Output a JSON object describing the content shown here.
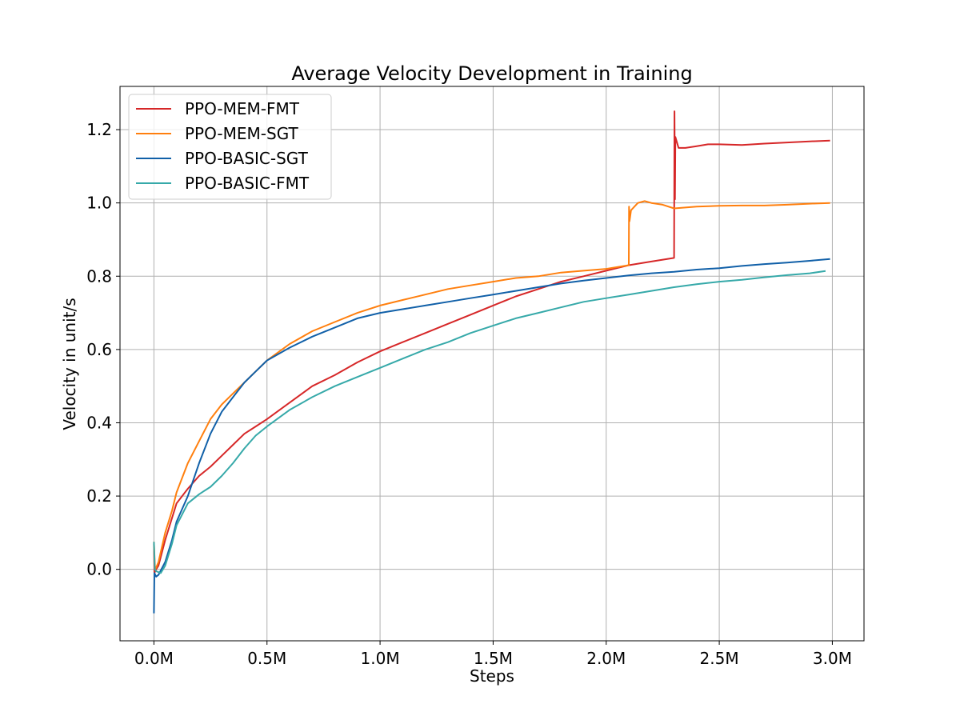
{
  "chart_data": {
    "type": "line",
    "title": "Average Velocity Development in Training",
    "xlabel": "Steps",
    "ylabel": "Velocity in unit/s",
    "xlim": [
      -0.15,
      3.14
    ],
    "ylim": [
      -0.195,
      1.318
    ],
    "x_unit": "M steps",
    "xticks": [
      0.0,
      0.5,
      1.0,
      1.5,
      2.0,
      2.5,
      3.0
    ],
    "xtick_labels": [
      "0.0M",
      "0.5M",
      "1.0M",
      "1.5M",
      "2.0M",
      "2.5M",
      "3.0M"
    ],
    "yticks": [
      0.0,
      0.2,
      0.4,
      0.6,
      0.8,
      1.0,
      1.2
    ],
    "ytick_labels": [
      "0.0",
      "0.2",
      "0.4",
      "0.6",
      "0.8",
      "1.0",
      "1.2"
    ],
    "grid": true,
    "legend_position": "top-left",
    "series": [
      {
        "name": "PPO-MEM-FMT",
        "color": "#d62728",
        "points": [
          [
            0.0,
            0.07
          ],
          [
            0.002,
            -0.01
          ],
          [
            0.01,
            0.0
          ],
          [
            0.02,
            0.01
          ],
          [
            0.05,
            0.08
          ],
          [
            0.08,
            0.14
          ],
          [
            0.1,
            0.18
          ],
          [
            0.15,
            0.22
          ],
          [
            0.2,
            0.255
          ],
          [
            0.25,
            0.28
          ],
          [
            0.3,
            0.31
          ],
          [
            0.35,
            0.34
          ],
          [
            0.4,
            0.37
          ],
          [
            0.45,
            0.39
          ],
          [
            0.5,
            0.41
          ],
          [
            0.6,
            0.455
          ],
          [
            0.7,
            0.5
          ],
          [
            0.8,
            0.53
          ],
          [
            0.9,
            0.565
          ],
          [
            1.0,
            0.595
          ],
          [
            1.1,
            0.62
          ],
          [
            1.2,
            0.645
          ],
          [
            1.3,
            0.67
          ],
          [
            1.4,
            0.695
          ],
          [
            1.5,
            0.72
          ],
          [
            1.6,
            0.745
          ],
          [
            1.7,
            0.765
          ],
          [
            1.8,
            0.785
          ],
          [
            1.9,
            0.8
          ],
          [
            2.0,
            0.815
          ],
          [
            2.1,
            0.83
          ],
          [
            2.2,
            0.84
          ],
          [
            2.3,
            0.85
          ],
          [
            2.302,
            1.25
          ],
          [
            2.304,
            1.01
          ],
          [
            2.306,
            1.18
          ],
          [
            2.32,
            1.15
          ],
          [
            2.35,
            1.15
          ],
          [
            2.4,
            1.155
          ],
          [
            2.45,
            1.16
          ],
          [
            2.5,
            1.16
          ],
          [
            2.6,
            1.158
          ],
          [
            2.7,
            1.162
          ],
          [
            2.8,
            1.165
          ],
          [
            2.9,
            1.168
          ],
          [
            2.99,
            1.17
          ]
        ]
      },
      {
        "name": "PPO-MEM-SGT",
        "color": "#ff7f0e",
        "points": [
          [
            0.0,
            0.075
          ],
          [
            0.005,
            0.0
          ],
          [
            0.01,
            0.005
          ],
          [
            0.02,
            0.02
          ],
          [
            0.05,
            0.1
          ],
          [
            0.08,
            0.16
          ],
          [
            0.1,
            0.21
          ],
          [
            0.15,
            0.29
          ],
          [
            0.2,
            0.35
          ],
          [
            0.25,
            0.41
          ],
          [
            0.3,
            0.45
          ],
          [
            0.35,
            0.48
          ],
          [
            0.4,
            0.51
          ],
          [
            0.45,
            0.54
          ],
          [
            0.5,
            0.57
          ],
          [
            0.6,
            0.615
          ],
          [
            0.7,
            0.65
          ],
          [
            0.8,
            0.675
          ],
          [
            0.9,
            0.7
          ],
          [
            1.0,
            0.72
          ],
          [
            1.1,
            0.735
          ],
          [
            1.2,
            0.75
          ],
          [
            1.3,
            0.765
          ],
          [
            1.4,
            0.775
          ],
          [
            1.5,
            0.785
          ],
          [
            1.6,
            0.795
          ],
          [
            1.7,
            0.8
          ],
          [
            1.8,
            0.81
          ],
          [
            1.9,
            0.815
          ],
          [
            2.0,
            0.82
          ],
          [
            2.1,
            0.83
          ],
          [
            2.101,
            0.99
          ],
          [
            2.103,
            0.95
          ],
          [
            2.11,
            0.98
          ],
          [
            2.14,
            1.0
          ],
          [
            2.17,
            1.005
          ],
          [
            2.2,
            1.0
          ],
          [
            2.25,
            0.995
          ],
          [
            2.3,
            0.985
          ],
          [
            2.4,
            0.99
          ],
          [
            2.5,
            0.992
          ],
          [
            2.6,
            0.993
          ],
          [
            2.7,
            0.993
          ],
          [
            2.8,
            0.995
          ],
          [
            2.9,
            0.998
          ],
          [
            2.99,
            1.0
          ]
        ]
      },
      {
        "name": "PPO-BASIC-SGT",
        "color": "#1160a8",
        "points": [
          [
            0.0,
            -0.12
          ],
          [
            0.002,
            -0.01
          ],
          [
            0.01,
            -0.02
          ],
          [
            0.02,
            -0.015
          ],
          [
            0.05,
            0.02
          ],
          [
            0.08,
            0.08
          ],
          [
            0.1,
            0.13
          ],
          [
            0.15,
            0.2
          ],
          [
            0.2,
            0.29
          ],
          [
            0.25,
            0.37
          ],
          [
            0.3,
            0.43
          ],
          [
            0.35,
            0.47
          ],
          [
            0.4,
            0.51
          ],
          [
            0.45,
            0.54
          ],
          [
            0.5,
            0.57
          ],
          [
            0.6,
            0.605
          ],
          [
            0.7,
            0.635
          ],
          [
            0.8,
            0.66
          ],
          [
            0.9,
            0.685
          ],
          [
            1.0,
            0.7
          ],
          [
            1.1,
            0.71
          ],
          [
            1.2,
            0.72
          ],
          [
            1.3,
            0.73
          ],
          [
            1.4,
            0.74
          ],
          [
            1.5,
            0.75
          ],
          [
            1.6,
            0.76
          ],
          [
            1.7,
            0.77
          ],
          [
            1.8,
            0.78
          ],
          [
            1.9,
            0.788
          ],
          [
            2.0,
            0.795
          ],
          [
            2.1,
            0.802
          ],
          [
            2.2,
            0.808
          ],
          [
            2.3,
            0.812
          ],
          [
            2.4,
            0.818
          ],
          [
            2.5,
            0.822
          ],
          [
            2.6,
            0.828
          ],
          [
            2.7,
            0.833
          ],
          [
            2.8,
            0.837
          ],
          [
            2.9,
            0.842
          ],
          [
            2.99,
            0.847
          ]
        ]
      },
      {
        "name": "PPO-BASIC-FMT",
        "color": "#36a9a9",
        "points": [
          [
            0.0,
            0.075
          ],
          [
            0.004,
            0.0
          ],
          [
            0.01,
            -0.005
          ],
          [
            0.03,
            -0.01
          ],
          [
            0.05,
            0.01
          ],
          [
            0.08,
            0.07
          ],
          [
            0.1,
            0.12
          ],
          [
            0.15,
            0.18
          ],
          [
            0.2,
            0.205
          ],
          [
            0.25,
            0.225
          ],
          [
            0.3,
            0.255
          ],
          [
            0.35,
            0.29
          ],
          [
            0.4,
            0.33
          ],
          [
            0.45,
            0.365
          ],
          [
            0.5,
            0.39
          ],
          [
            0.6,
            0.435
          ],
          [
            0.7,
            0.47
          ],
          [
            0.8,
            0.5
          ],
          [
            0.9,
            0.525
          ],
          [
            1.0,
            0.55
          ],
          [
            1.1,
            0.575
          ],
          [
            1.2,
            0.6
          ],
          [
            1.3,
            0.62
          ],
          [
            1.4,
            0.645
          ],
          [
            1.5,
            0.665
          ],
          [
            1.6,
            0.685
          ],
          [
            1.7,
            0.7
          ],
          [
            1.8,
            0.715
          ],
          [
            1.9,
            0.73
          ],
          [
            2.0,
            0.74
          ],
          [
            2.1,
            0.75
          ],
          [
            2.2,
            0.76
          ],
          [
            2.3,
            0.77
          ],
          [
            2.4,
            0.778
          ],
          [
            2.5,
            0.785
          ],
          [
            2.6,
            0.79
          ],
          [
            2.7,
            0.797
          ],
          [
            2.8,
            0.803
          ],
          [
            2.9,
            0.808
          ],
          [
            2.97,
            0.814
          ]
        ]
      }
    ]
  }
}
